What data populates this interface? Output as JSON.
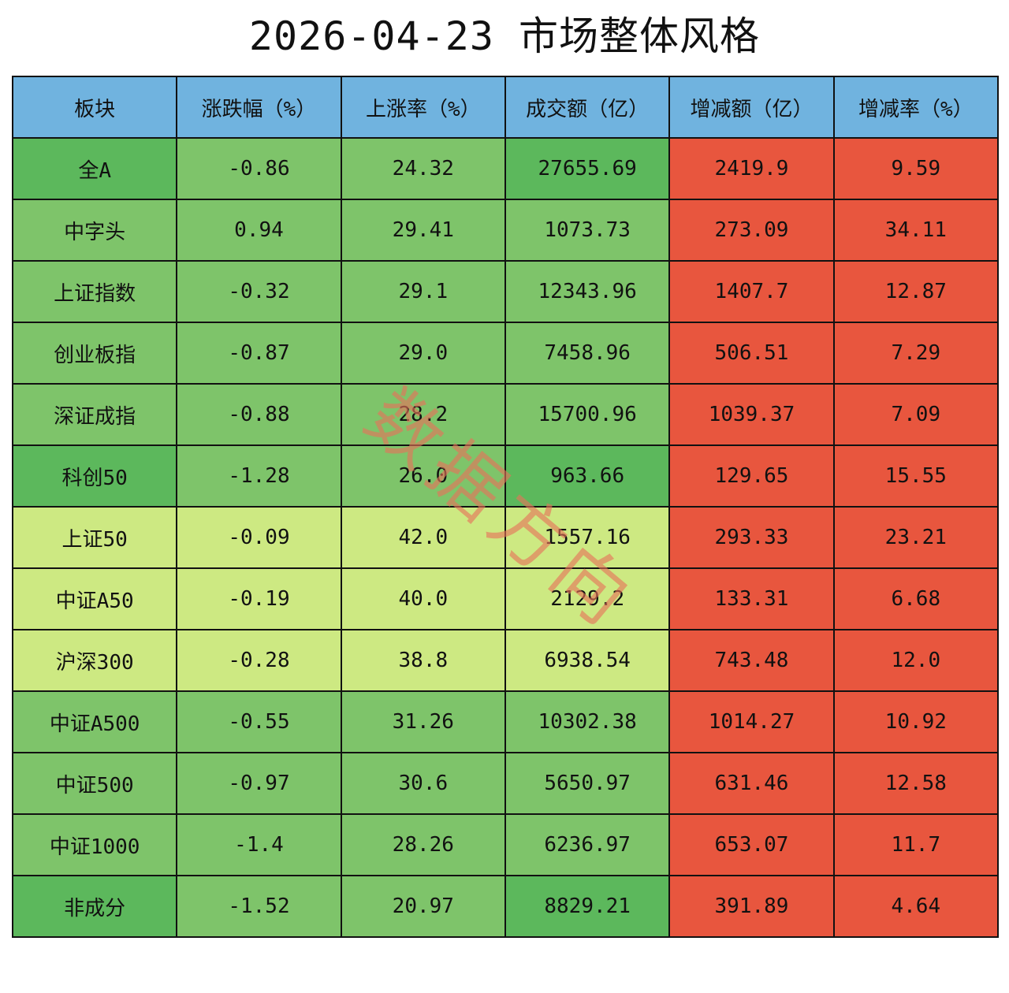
{
  "title": "2026-04-23 市场整体风格",
  "watermark": "数据方向",
  "colors": {
    "header": "#70b3df",
    "dark_green": "#5cb85c",
    "mid_green": "#7ec46a",
    "light_green": "#cde982",
    "red": "#e8563e",
    "border": "#111111",
    "watermark": "#e8735a"
  },
  "table": {
    "headers": [
      "板块",
      "涨跌幅（%）",
      "上涨率（%）",
      "成交额（亿）",
      "增减额（亿）",
      "增减率（%）"
    ],
    "rows": [
      {
        "name": "全A",
        "change_pct": "-0.86",
        "up_ratio": "24.32",
        "turnover": "27655.69",
        "delta_amount": "2419.9",
        "delta_pct": "9.59",
        "shade": "dark"
      },
      {
        "name": "中字头",
        "change_pct": "0.94",
        "up_ratio": "29.41",
        "turnover": "1073.73",
        "delta_amount": "273.09",
        "delta_pct": "34.11",
        "shade": "mid"
      },
      {
        "name": "上证指数",
        "change_pct": "-0.32",
        "up_ratio": "29.1",
        "turnover": "12343.96",
        "delta_amount": "1407.7",
        "delta_pct": "12.87",
        "shade": "mid"
      },
      {
        "name": "创业板指",
        "change_pct": "-0.87",
        "up_ratio": "29.0",
        "turnover": "7458.96",
        "delta_amount": "506.51",
        "delta_pct": "7.29",
        "shade": "mid"
      },
      {
        "name": "深证成指",
        "change_pct": "-0.88",
        "up_ratio": "28.2",
        "turnover": "15700.96",
        "delta_amount": "1039.37",
        "delta_pct": "7.09",
        "shade": "mid"
      },
      {
        "name": "科创50",
        "change_pct": "-1.28",
        "up_ratio": "26.0",
        "turnover": "963.66",
        "delta_amount": "129.65",
        "delta_pct": "15.55",
        "shade": "mid2"
      },
      {
        "name": "上证50",
        "change_pct": "-0.09",
        "up_ratio": "42.0",
        "turnover": "1557.16",
        "delta_amount": "293.33",
        "delta_pct": "23.21",
        "shade": "light"
      },
      {
        "name": "中证A50",
        "change_pct": "-0.19",
        "up_ratio": "40.0",
        "turnover": "2129.2",
        "delta_amount": "133.31",
        "delta_pct": "6.68",
        "shade": "light"
      },
      {
        "name": "沪深300",
        "change_pct": "-0.28",
        "up_ratio": "38.8",
        "turnover": "6938.54",
        "delta_amount": "743.48",
        "delta_pct": "12.0",
        "shade": "light"
      },
      {
        "name": "中证A500",
        "change_pct": "-0.55",
        "up_ratio": "31.26",
        "turnover": "10302.38",
        "delta_amount": "1014.27",
        "delta_pct": "10.92",
        "shade": "mid"
      },
      {
        "name": "中证500",
        "change_pct": "-0.97",
        "up_ratio": "30.6",
        "turnover": "5650.97",
        "delta_amount": "631.46",
        "delta_pct": "12.58",
        "shade": "mid"
      },
      {
        "name": "中证1000",
        "change_pct": "-1.4",
        "up_ratio": "28.26",
        "turnover": "6236.97",
        "delta_amount": "653.07",
        "delta_pct": "11.7",
        "shade": "mid"
      },
      {
        "name": "非成分",
        "change_pct": "-1.52",
        "up_ratio": "20.97",
        "turnover": "8829.21",
        "delta_amount": "391.89",
        "delta_pct": "4.64",
        "shade": "dark"
      }
    ]
  }
}
